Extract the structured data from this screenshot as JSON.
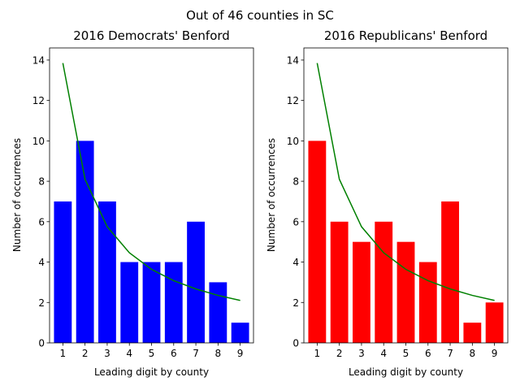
{
  "suptitle": "Out of 46 counties in SC",
  "chart_data": [
    {
      "type": "bar",
      "title": "2016 Democrats' Benford",
      "xlabel": "Leading digit by county",
      "ylabel": "Number of occurrences",
      "categories": [
        "1",
        "2",
        "3",
        "4",
        "5",
        "6",
        "7",
        "8",
        "9"
      ],
      "values": [
        7,
        10,
        7,
        4,
        4,
        4,
        6,
        3,
        1
      ],
      "bar_color": "#0000ff",
      "expected_line": {
        "color": "#008000",
        "values": [
          13.85,
          8.1,
          5.75,
          4.46,
          3.64,
          3.08,
          2.67,
          2.35,
          2.1
        ]
      },
      "ylim": [
        0,
        14.6
      ],
      "yticks": [
        0,
        2,
        4,
        6,
        8,
        10,
        12,
        14
      ],
      "grid": false,
      "legend": "none"
    },
    {
      "type": "bar",
      "title": "2016 Republicans' Benford",
      "xlabel": "Leading digit by county",
      "ylabel": "Number of occurrences",
      "categories": [
        "1",
        "2",
        "3",
        "4",
        "5",
        "6",
        "7",
        "8",
        "9"
      ],
      "values": [
        10,
        6,
        5,
        6,
        5,
        4,
        7,
        1,
        2
      ],
      "bar_color": "#ff0000",
      "expected_line": {
        "color": "#008000",
        "values": [
          13.85,
          8.1,
          5.75,
          4.46,
          3.64,
          3.08,
          2.67,
          2.35,
          2.1
        ]
      },
      "ylim": [
        0,
        14.6
      ],
      "yticks": [
        0,
        2,
        4,
        6,
        8,
        10,
        12,
        14
      ],
      "grid": false,
      "legend": "none"
    }
  ]
}
